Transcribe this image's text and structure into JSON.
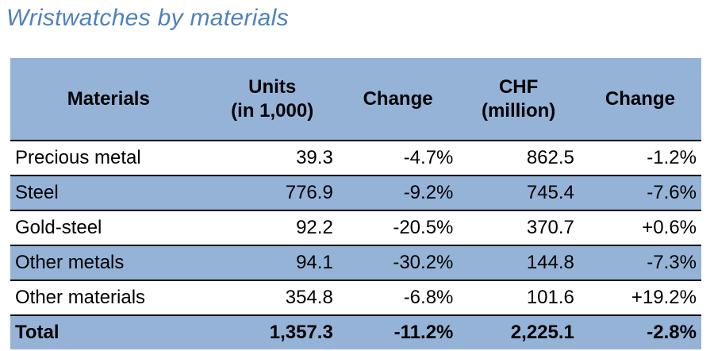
{
  "chart_data": {
    "type": "table",
    "title": "Wristwatches by materials",
    "columns": [
      [
        "Materials"
      ],
      [
        "Units",
        "(in 1,000)"
      ],
      [
        "Change"
      ],
      [
        "CHF",
        "(million)"
      ],
      [
        "Change"
      ]
    ],
    "rows": [
      {
        "material": "Precious metal",
        "units": "39.3",
        "units_change": "-4.7%",
        "chf": "862.5",
        "chf_change": "-1.2%"
      },
      {
        "material": "Steel",
        "units": "776.9",
        "units_change": "-9.2%",
        "chf": "745.4",
        "chf_change": "-7.6%"
      },
      {
        "material": "Gold-steel",
        "units": "92.2",
        "units_change": "-20.5%",
        "chf": "370.7",
        "chf_change": "+0.6%"
      },
      {
        "material": "Other metals",
        "units": "94.1",
        "units_change": "-30.2%",
        "chf": "144.8",
        "chf_change": "-7.3%"
      },
      {
        "material": "Other materials",
        "units": "354.8",
        "units_change": "-6.8%",
        "chf": "101.6",
        "chf_change": "+19.2%"
      }
    ],
    "total": {
      "material": "Total",
      "units": "1,357.3",
      "units_change": "-11.2%",
      "chf": "2,225.1",
      "chf_change": "-2.8%"
    },
    "colors": {
      "title": "#4f81bd",
      "band": "#95b3d7",
      "rule": "#000000"
    }
  }
}
